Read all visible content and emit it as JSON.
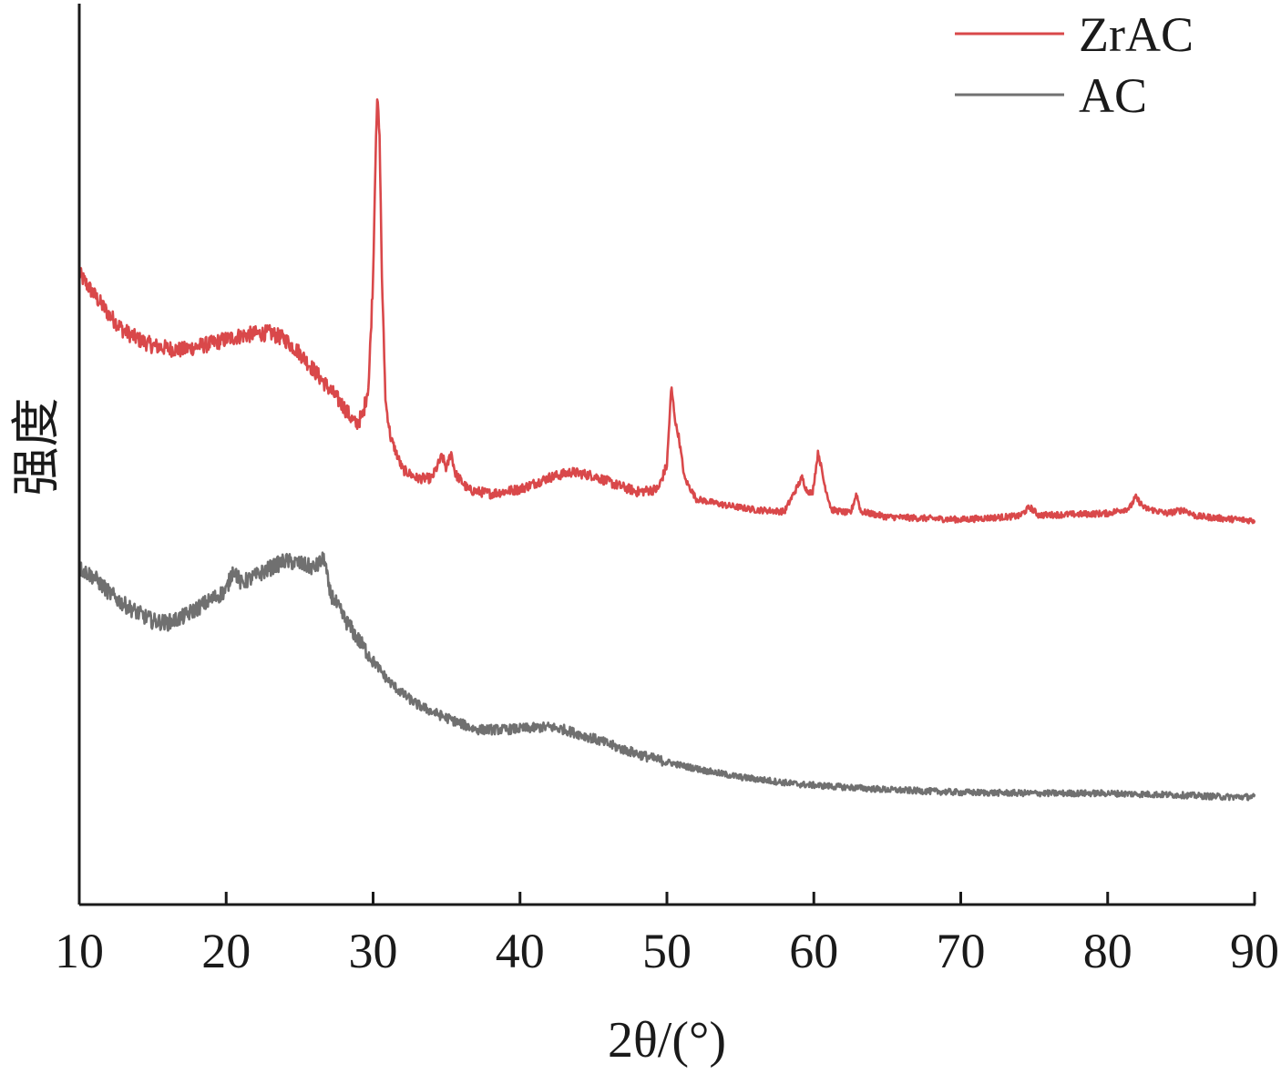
{
  "chart_data": {
    "type": "line",
    "xlabel": "2θ/(°)",
    "ylabel": "强度",
    "xlim": [
      10,
      90
    ],
    "ylim": [
      0,
      100
    ],
    "xticks": [
      10,
      20,
      30,
      40,
      50,
      60,
      70,
      80,
      90
    ],
    "grid": false,
    "legend_position": "top-right",
    "series": [
      {
        "name": "ZrAC",
        "color": "#d9484a",
        "points": [
          [
            10,
            70.3
          ],
          [
            11,
            68.0
          ],
          [
            12,
            65.8
          ],
          [
            13,
            64.0
          ],
          [
            14,
            63.0
          ],
          [
            15,
            62.3
          ],
          [
            16,
            62.0
          ],
          [
            17,
            61.8
          ],
          [
            18,
            62.2
          ],
          [
            19,
            62.5
          ],
          [
            20,
            63.0
          ],
          [
            21,
            63.4
          ],
          [
            22,
            63.6
          ],
          [
            23,
            63.7
          ],
          [
            24,
            63.0
          ],
          [
            25,
            61.5
          ],
          [
            26,
            59.5
          ],
          [
            27,
            57.5
          ],
          [
            28,
            55.5
          ],
          [
            28.8,
            53.5
          ],
          [
            29.3,
            54.5
          ],
          [
            29.7,
            58.0
          ],
          [
            30.0,
            70.0
          ],
          [
            30.2,
            86.0
          ],
          [
            30.3,
            90.0
          ],
          [
            30.45,
            85.0
          ],
          [
            30.6,
            70.0
          ],
          [
            30.85,
            56.0
          ],
          [
            31.2,
            52.0
          ],
          [
            32,
            48.5
          ],
          [
            33,
            47.5
          ],
          [
            34,
            47.5
          ],
          [
            34.7,
            50.0
          ],
          [
            35.0,
            48.5
          ],
          [
            35.3,
            50.5
          ],
          [
            35.6,
            48.0
          ],
          [
            36.5,
            46.2
          ],
          [
            38,
            45.8
          ],
          [
            40,
            46.3
          ],
          [
            42,
            47.6
          ],
          [
            43.5,
            48.2
          ],
          [
            45,
            47.8
          ],
          [
            46.5,
            46.8
          ],
          [
            48,
            46.0
          ],
          [
            49.4,
            46.3
          ],
          [
            50.0,
            49.0
          ],
          [
            50.3,
            57.7
          ],
          [
            50.6,
            53.5
          ],
          [
            50.8,
            52.2
          ],
          [
            51.2,
            47.5
          ],
          [
            52,
            45.2
          ],
          [
            54,
            44.5
          ],
          [
            56,
            44.0
          ],
          [
            58,
            43.8
          ],
          [
            59.2,
            47.6
          ],
          [
            59.5,
            46.2
          ],
          [
            59.9,
            45.8
          ],
          [
            60.3,
            50.5
          ],
          [
            60.7,
            47.0
          ],
          [
            61.2,
            44.0
          ],
          [
            62.5,
            43.6
          ],
          [
            62.9,
            45.8
          ],
          [
            63.2,
            43.8
          ],
          [
            65,
            43.2
          ],
          [
            70,
            42.9
          ],
          [
            74,
            43.3
          ],
          [
            74.7,
            44.3
          ],
          [
            75.3,
            43.4
          ],
          [
            78,
            43.5
          ],
          [
            80,
            43.6
          ],
          [
            81.5,
            44.2
          ],
          [
            81.9,
            45.4
          ],
          [
            82.5,
            44.2
          ],
          [
            84,
            43.6
          ],
          [
            85.2,
            44.0
          ],
          [
            86,
            43.3
          ],
          [
            88,
            43.0
          ],
          [
            90,
            42.8
          ]
        ]
      },
      {
        "name": "AC",
        "color": "#707070",
        "points": [
          [
            10,
            37.5
          ],
          [
            11,
            36.5
          ],
          [
            12,
            34.8
          ],
          [
            13,
            33.5
          ],
          [
            14,
            32.5
          ],
          [
            15,
            31.6
          ],
          [
            16,
            31.4
          ],
          [
            17,
            32.0
          ],
          [
            18,
            33.0
          ],
          [
            19,
            34.0
          ],
          [
            20,
            35.0
          ],
          [
            20.5,
            37.5
          ],
          [
            21,
            35.8
          ],
          [
            22,
            36.6
          ],
          [
            23,
            37.5
          ],
          [
            24,
            38.3
          ],
          [
            25,
            38.0
          ],
          [
            26,
            37.5
          ],
          [
            26.7,
            38.6
          ],
          [
            27,
            35.0
          ],
          [
            28,
            32.0
          ],
          [
            29,
            29.5
          ],
          [
            30,
            27.2
          ],
          [
            31,
            25.0
          ],
          [
            32,
            23.5
          ],
          [
            33,
            22.3
          ],
          [
            34,
            21.5
          ],
          [
            35,
            20.8
          ],
          [
            37,
            19.5
          ],
          [
            39,
            19.5
          ],
          [
            40,
            19.6
          ],
          [
            41,
            19.7
          ],
          [
            42,
            19.8
          ],
          [
            43,
            19.5
          ],
          [
            44,
            19.0
          ],
          [
            45,
            18.5
          ],
          [
            47,
            17.3
          ],
          [
            49,
            16.3
          ],
          [
            51,
            15.5
          ],
          [
            53,
            14.8
          ],
          [
            55,
            14.2
          ],
          [
            57,
            13.8
          ],
          [
            59,
            13.4
          ],
          [
            60,
            13.3
          ],
          [
            62,
            13.1
          ],
          [
            65,
            12.8
          ],
          [
            70,
            12.5
          ],
          [
            75,
            12.4
          ],
          [
            78,
            12.4
          ],
          [
            80,
            12.4
          ],
          [
            85,
            12.2
          ],
          [
            88,
            12.0
          ],
          [
            90,
            12.0
          ]
        ]
      }
    ]
  }
}
